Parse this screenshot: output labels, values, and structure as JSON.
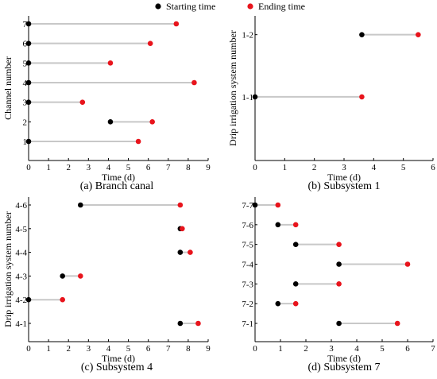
{
  "legend": {
    "start": {
      "label": "Starting time",
      "color": "#000000"
    },
    "end": {
      "label": "Ending time",
      "color": "#e8141c"
    }
  },
  "colors": {
    "line": "#c8c8c8",
    "axis": "#000000"
  },
  "chart_data": [
    {
      "type": "scatter",
      "caption": "(a) Branch canal",
      "xlabel": "Time (d)",
      "ylabel": "Channel number",
      "xlim": [
        0,
        9
      ],
      "xticks": [
        "0",
        "1",
        "2",
        "3",
        "4",
        "5",
        "6",
        "7",
        "8",
        "9"
      ],
      "categories": [
        "1",
        "2",
        "3",
        "4",
        "5",
        "6",
        "7"
      ],
      "segments": [
        {
          "category": "1",
          "start": 0,
          "end": 5.5
        },
        {
          "category": "2",
          "start": 4.1,
          "end": 6.2
        },
        {
          "category": "3",
          "start": 0,
          "end": 2.7
        },
        {
          "category": "4",
          "start": 0,
          "end": 8.3
        },
        {
          "category": "5",
          "start": 0,
          "end": 4.1
        },
        {
          "category": "6",
          "start": 0,
          "end": 6.1
        },
        {
          "category": "7",
          "start": 0,
          "end": 7.4
        }
      ]
    },
    {
      "type": "scatter",
      "caption": "(b) Subsystem 1",
      "xlabel": "Time (d)",
      "ylabel": "Drip irrigation system number",
      "xlim": [
        0,
        6
      ],
      "xticks": [
        "0",
        "1",
        "2",
        "3",
        "4",
        "5",
        "6"
      ],
      "categories": [
        "1-1",
        "1-2"
      ],
      "segments": [
        {
          "category": "1-1",
          "start": 0,
          "end": 3.6
        },
        {
          "category": "1-2",
          "start": 3.6,
          "end": 5.5
        }
      ]
    },
    {
      "type": "scatter",
      "caption": "(c) Subsystem 4",
      "xlabel": "Time (d)",
      "ylabel": "Drip irrigation system number",
      "xlim": [
        0,
        9
      ],
      "xticks": [
        "0",
        "1",
        "2",
        "3",
        "4",
        "5",
        "6",
        "7",
        "8",
        "9"
      ],
      "categories": [
        "4-1",
        "4-2",
        "4-3",
        "4-4",
        "4-5",
        "4-6"
      ],
      "segments": [
        {
          "category": "4-1",
          "start": 7.6,
          "end": 8.5
        },
        {
          "category": "4-2",
          "start": 0,
          "end": 1.7
        },
        {
          "category": "4-3",
          "start": 1.7,
          "end": 2.6
        },
        {
          "category": "4-4",
          "start": 7.6,
          "end": 8.1
        },
        {
          "category": "4-5",
          "start": 7.6,
          "end": 7.7
        },
        {
          "category": "4-6",
          "start": 2.6,
          "end": 7.6
        }
      ]
    },
    {
      "type": "scatter",
      "caption": "(d) Subsystem 7",
      "xlabel": "Time (d)",
      "ylabel": "",
      "xlim": [
        0,
        7
      ],
      "xticks": [
        "0",
        "1",
        "2",
        "3",
        "4",
        "5",
        "6",
        "7"
      ],
      "categories": [
        "7-1",
        "7-2",
        "7-3",
        "7-4",
        "7-5",
        "7-6",
        "7-7"
      ],
      "segments": [
        {
          "category": "7-1",
          "start": 3.3,
          "end": 5.6
        },
        {
          "category": "7-2",
          "start": 0.9,
          "end": 1.6
        },
        {
          "category": "7-3",
          "start": 1.6,
          "end": 3.3
        },
        {
          "category": "7-4",
          "start": 3.3,
          "end": 6.0
        },
        {
          "category": "7-5",
          "start": 1.6,
          "end": 3.3
        },
        {
          "category": "7-6",
          "start": 0.9,
          "end": 1.6
        },
        {
          "category": "7-7",
          "start": 0,
          "end": 0.9
        }
      ]
    }
  ]
}
